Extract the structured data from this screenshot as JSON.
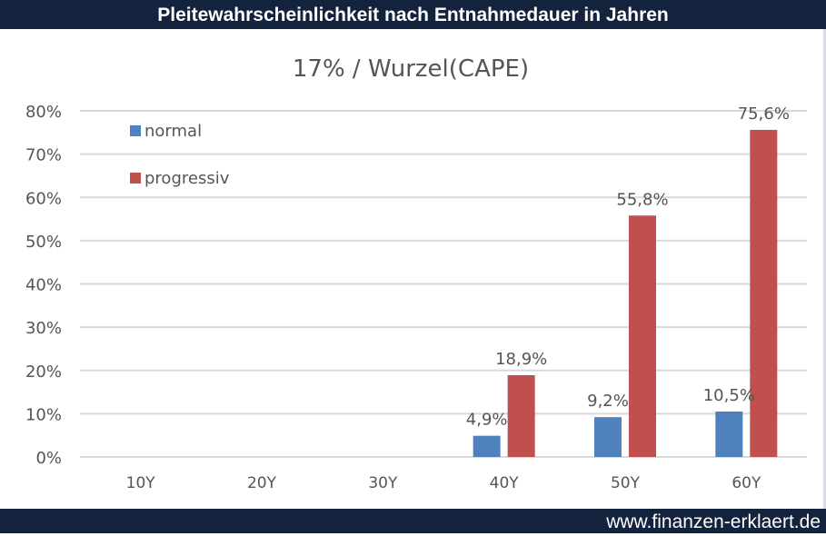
{
  "header": {
    "title": "Pleitewahrscheinlichkeit nach Entnahmedauer in Jahren"
  },
  "footer": {
    "url": "www.finanzen-erklaert.de"
  },
  "chart_data": {
    "type": "bar",
    "title": "17% / Wurzel(CAPE)",
    "categories": [
      "10Y",
      "20Y",
      "30Y",
      "40Y",
      "50Y",
      "60Y"
    ],
    "series": [
      {
        "name": "normal",
        "color": "#4f81bd",
        "values": [
          0,
          0,
          0,
          4.9,
          9.2,
          10.5
        ],
        "labels": [
          "",
          "",
          "",
          "4,9%",
          "9,2%",
          "10,5%"
        ]
      },
      {
        "name": "progressiv",
        "color": "#c0504d",
        "values": [
          0,
          0,
          0,
          18.9,
          55.8,
          75.6
        ],
        "labels": [
          "",
          "",
          "",
          "18,9%",
          "55,8%",
          "75,6%"
        ]
      }
    ],
    "yticks": [
      "0%",
      "10%",
      "20%",
      "30%",
      "40%",
      "50%",
      "60%",
      "70%",
      "80%"
    ],
    "ylim": [
      0,
      80
    ],
    "grid": true,
    "legend": "top-left"
  }
}
